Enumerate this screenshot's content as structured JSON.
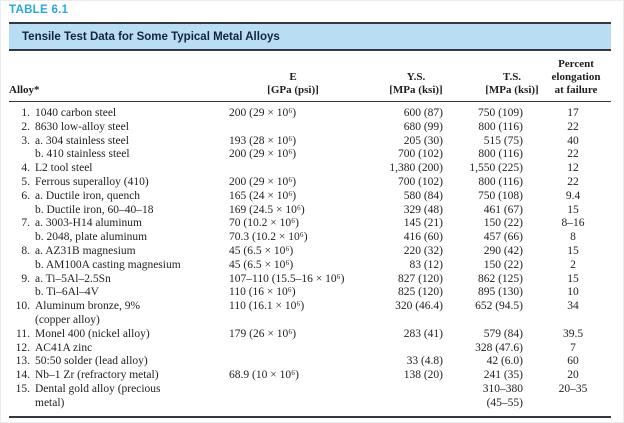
{
  "table_label": "TABLE 6.1",
  "banner_title": "Tensile Test Data for Some Typical Metal Alloys",
  "columns": {
    "alloy": "Alloy*",
    "e_line1": "E",
    "e_line2": "[GPa (psi)]",
    "ys_line1": "Y.S.",
    "ys_line2": "[MPa (ksi)]",
    "ts_line1": "T.S.",
    "ts_line2": "[MPa (ksi)]",
    "el_line1": "Percent",
    "el_line2": "elongation",
    "el_line3": "at failure"
  },
  "colors": {
    "accent_blue": "#2aa7dd",
    "banner_bg": "#b9ddf2",
    "banner_text": "#14243e",
    "rule_dark": "#313844",
    "body_text": "#1f1f1f"
  },
  "rows": [
    {
      "num": "1.",
      "name": "1040 carbon steel",
      "e": "200 (29 × 10⁶)",
      "ys": "600 (87)",
      "ts": "750 (109)",
      "el": "17"
    },
    {
      "num": "2.",
      "name": "8630 low-alloy steel",
      "e": "",
      "ys": "680 (99)",
      "ts": "800 (116)",
      "el": "22"
    },
    {
      "num": "3.",
      "name": "a. 304 stainless steel",
      "e": "193 (28 × 10⁶)",
      "ys": "205 (30)",
      "ts": "515 (75)",
      "el": "40"
    },
    {
      "num": "",
      "name": "b. 410 stainless steel",
      "e": "200 (29 × 10⁶)",
      "ys": "700 (102)",
      "ts": "800 (116)",
      "el": "22"
    },
    {
      "num": "4.",
      "name": "L2 tool steel",
      "e": "",
      "ys": "1,380 (200)",
      "ts": "1,550 (225)",
      "el": "12"
    },
    {
      "num": "5.",
      "name": "Ferrous superalloy (410)",
      "e": "200 (29 × 10⁶)",
      "ys": "700 (102)",
      "ts": "800 (116)",
      "el": "22"
    },
    {
      "num": "6.",
      "name": "a. Ductile iron, quench",
      "e": "165 (24 × 10⁶)",
      "ys": "580 (84)",
      "ts": "750 (108)",
      "el": "9.4"
    },
    {
      "num": "",
      "name": "b. Ductile iron, 60–40–18",
      "e": "169 (24.5 × 10⁶)",
      "ys": "329 (48)",
      "ts": "461 (67)",
      "el": "15"
    },
    {
      "num": "7.",
      "name": "a. 3003-H14 aluminum",
      "e": "70 (10.2 × 10⁶)",
      "ys": "145 (21)",
      "ts": "150 (22)",
      "el": "8–16"
    },
    {
      "num": "",
      "name": "b. 2048, plate aluminum",
      "e": "70.3 (10.2 × 10⁶)",
      "ys": "416 (60)",
      "ts": "457 (66)",
      "el": "8"
    },
    {
      "num": "8.",
      "name": "a. AZ31B magnesium",
      "e": "45 (6.5 × 10⁶)",
      "ys": "220 (32)",
      "ts": "290 (42)",
      "el": "15"
    },
    {
      "num": "",
      "name": "b. AM100A casting magnesium",
      "e": "45 (6.5 × 10⁶)",
      "ys": "83 (12)",
      "ts": "150 (22)",
      "el": "2"
    },
    {
      "num": "9.",
      "name": "a. Ti–5Al–2.5Sn",
      "e": "107–110 (15.5–16 × 10⁶)",
      "ys": "827 (120)",
      "ts": "862 (125)",
      "el": "15"
    },
    {
      "num": "",
      "name": "b. Ti–6Al–4V",
      "e": "110 (16 × 10⁶)",
      "ys": "825 (120)",
      "ts": "895 (130)",
      "el": "10"
    },
    {
      "num": "10.",
      "name": "Aluminum bronze, 9%",
      "e": "110 (16.1 × 10⁶)",
      "ys": "320 (46.4)",
      "ts": "652 (94.5)",
      "el": "34"
    },
    {
      "num": "",
      "name": "(copper alloy)",
      "e": "",
      "ys": "",
      "ts": "",
      "el": ""
    },
    {
      "num": "11.",
      "name": "Monel 400 (nickel alloy)",
      "e": "179 (26 × 10⁶)",
      "ys": "283 (41)",
      "ts": "579 (84)",
      "el": "39.5"
    },
    {
      "num": "12.",
      "name": "AC41A zinc",
      "e": "",
      "ys": "",
      "ts": "328 (47.6)",
      "el": "7"
    },
    {
      "num": "13.",
      "name": "50:50 solder (lead alloy)",
      "e": "",
      "ys": "33 (4.8)",
      "ts": "42 (6.0)",
      "el": "60"
    },
    {
      "num": "14.",
      "name": "Nb–1 Zr (refractory metal)",
      "e": "68.9 (10 × 10⁶)",
      "ys": "138 (20)",
      "ts": "241 (35)",
      "el": "20"
    },
    {
      "num": "15.",
      "name": "Dental gold alloy (precious",
      "e": "",
      "ys": "",
      "ts": "310–380",
      "el": "20–35"
    },
    {
      "num": "",
      "name": "metal)",
      "e": "",
      "ys": "",
      "ts": "(45–55)",
      "el": ""
    }
  ]
}
